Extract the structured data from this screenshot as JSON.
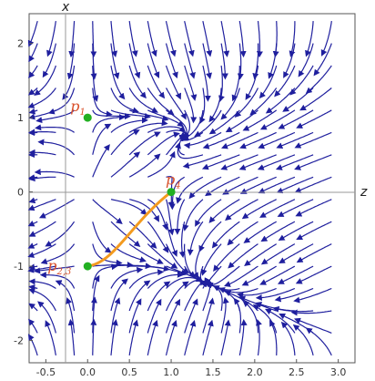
{
  "axes": {
    "x_axis_title": "z",
    "y_axis_title": "x",
    "x_ticks": [
      "-0.5",
      "0.0",
      "0.5",
      "1.0",
      "1.5",
      "2.0",
      "2.5",
      "3.0"
    ],
    "y_ticks": [
      "-2",
      "-1",
      "0",
      "1",
      "2"
    ],
    "x_range": [
      -0.7,
      3.2
    ],
    "y_range": [
      -2.3,
      2.4
    ]
  },
  "points": [
    {
      "name": "p",
      "sub": "1",
      "z": 0,
      "x": 1
    },
    {
      "name": "p",
      "sub": "4",
      "z": 1,
      "x": 0
    },
    {
      "name": "p",
      "sub": "2,3",
      "z": 0,
      "x": -1
    }
  ],
  "colors": {
    "streamline": "#1f1f9e",
    "orbit": "#f39a1f",
    "point": "#22b022",
    "point_label": "#d9502a",
    "axis": "#999999",
    "frame": "#555555"
  }
}
